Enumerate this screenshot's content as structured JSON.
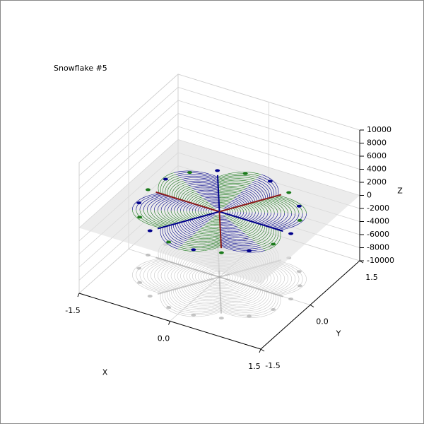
{
  "chart_data": {
    "type": "contour3d",
    "title": "Snowflake #5",
    "xlabel": "X",
    "ylabel": "Y",
    "zlabel": "Z",
    "xlim": [
      -1.5,
      1.5
    ],
    "xticks": [
      -1.5,
      {
        "value": 0,
        "label": "0.0"
      },
      1.5
    ],
    "ylim": [
      -1.5,
      1.5
    ],
    "yticks": [
      -1.5,
      {
        "value": 0,
        "label": "0.0"
      },
      1.5
    ],
    "zlim": [
      -10000,
      10000
    ],
    "zticks": [
      -10000,
      -8000,
      -6000,
      -4000,
      -2000,
      0,
      2000,
      4000,
      6000,
      8000,
      10000
    ],
    "colors": [
      "#00008b",
      "#1a7a1a",
      "#8b1a1a"
    ],
    "grid": true
  }
}
